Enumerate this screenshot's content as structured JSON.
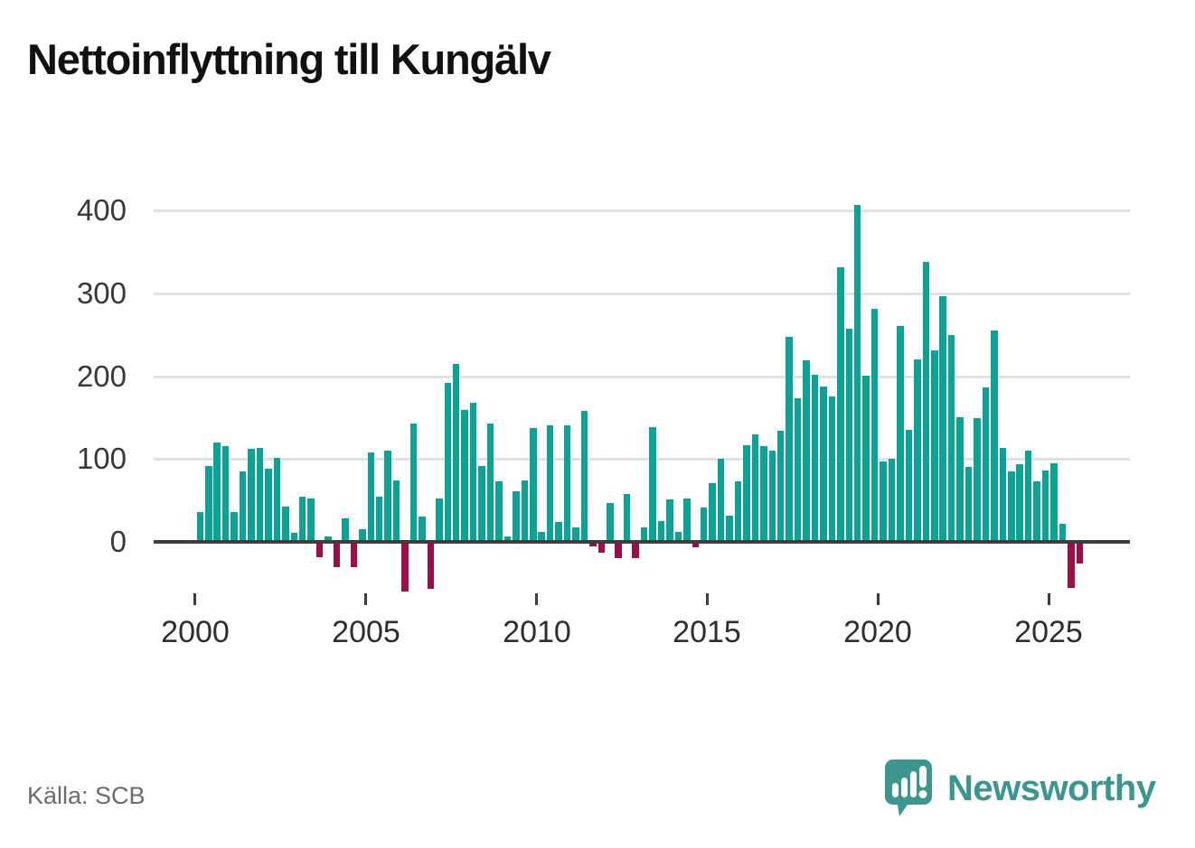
{
  "title": "Nettoinflyttning till Kungälv",
  "source": "Källa: SCB",
  "branding": {
    "name": "Newsworthy"
  },
  "colors": {
    "positive_bar": "#0aa396",
    "negative_bar": "#a00c48",
    "axis": "#3d3d3d",
    "gridline": "#e2e2e2",
    "brand_teal": "#3b968f",
    "title_text": "#111111",
    "muted_text": "#6b6b6b"
  },
  "chart_data": {
    "type": "bar",
    "title": "Nettoinflyttning till Kungälv",
    "period": "quarterly",
    "start_period": "2000 Q1",
    "end_period": "2025 Q4",
    "xlabel": "",
    "ylabel": "",
    "grid": "horizontal",
    "legend": "none",
    "x_tick_labels": [
      "2000",
      "2005",
      "2010",
      "2015",
      "2020",
      "2025"
    ],
    "y_ticks": [
      0,
      100,
      200,
      300,
      400
    ],
    "ylim": [
      -75,
      430
    ],
    "values": [
      36,
      92,
      120,
      115,
      36,
      85,
      112,
      113,
      88,
      101,
      42,
      11,
      54,
      52,
      -19,
      6,
      -31,
      28,
      -31,
      15,
      108,
      54,
      110,
      74,
      -60,
      143,
      30,
      -57,
      52,
      192,
      215,
      159,
      168,
      92,
      143,
      73,
      6,
      61,
      74,
      137,
      12,
      141,
      24,
      141,
      17,
      158,
      -5,
      -13,
      47,
      -20,
      58,
      -20,
      17,
      138,
      25,
      51,
      12,
      52,
      -7,
      41,
      71,
      100,
      32,
      73,
      117,
      130,
      115,
      110,
      134,
      247,
      173,
      219,
      202,
      188,
      176,
      331,
      257,
      407,
      201,
      281,
      97,
      100,
      261,
      135,
      220,
      338,
      231,
      296,
      250,
      150,
      91,
      149,
      186,
      255,
      113,
      85,
      94,
      110,
      73,
      86,
      95,
      22,
      -56,
      -26
    ]
  }
}
